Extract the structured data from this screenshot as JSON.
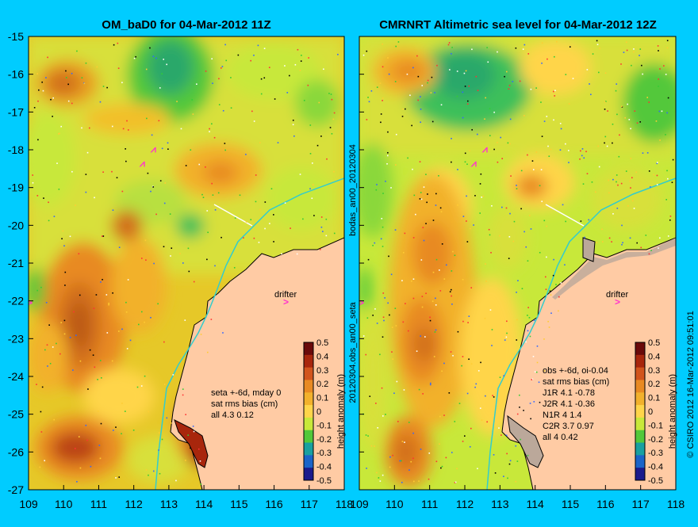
{
  "left_panel": {
    "title": "OM_baD0 for 04-Mar-2012 11Z",
    "x_ticks": [
      "109",
      "110",
      "111",
      "112",
      "113",
      "114",
      "115",
      "116",
      "117",
      "118"
    ],
    "y_ticks": [
      "-15",
      "-16",
      "-17",
      "-18",
      "-19",
      "-20",
      "-21",
      "-22",
      "-23",
      "-24",
      "-25",
      "-26",
      "-27"
    ],
    "drifter_label": "drifter",
    "stats": [
      "seta +-6d, mday 0",
      "sat rms bias (cm)",
      "all 4.3 0.12"
    ]
  },
  "right_panel": {
    "title": "CMRNRT Altimetric sea level  for 04-Mar-2012 12Z",
    "x_ticks": [
      "109",
      "110",
      "111",
      "112",
      "113",
      "114",
      "115",
      "116",
      "117",
      "118"
    ],
    "drifter_label": "drifter",
    "stats": [
      "obs +-6d, oi-0.04",
      "sat rms bias (cm)",
      "J1R  4.1 -0.78",
      "J2R  4.1 -0.36",
      "N1R  4 1.4",
      "C2R  3.7 0.97",
      "all 4 0.42"
    ]
  },
  "colorbar": {
    "ticks": [
      "0.5",
      "0.4",
      "0.3",
      "0.2",
      "0.1",
      "0",
      "-0.1",
      "-0.2",
      "-0.3",
      "-0.4",
      "-0.5"
    ],
    "label": "height anomaly (m)",
    "colors": [
      "#6a0a0a",
      "#a8260c",
      "#d2541c",
      "#e88a22",
      "#f2b12c",
      "#ffd54a",
      "#c8e83a",
      "#52c83a",
      "#18a0a0",
      "#1a64c8",
      "#1a1a8c"
    ]
  },
  "side_text": {
    "middle_top": "bodas_an00_20120304",
    "middle_bottom": "20120304.obs_an00_seta",
    "right": "© CSIRO 2012   16-Mar-2012 09:51:01"
  },
  "colors": {
    "background": "#00ccff",
    "land": "#ffcba4",
    "coast_current": "#33cccc",
    "drifter": "#ff33cc"
  }
}
